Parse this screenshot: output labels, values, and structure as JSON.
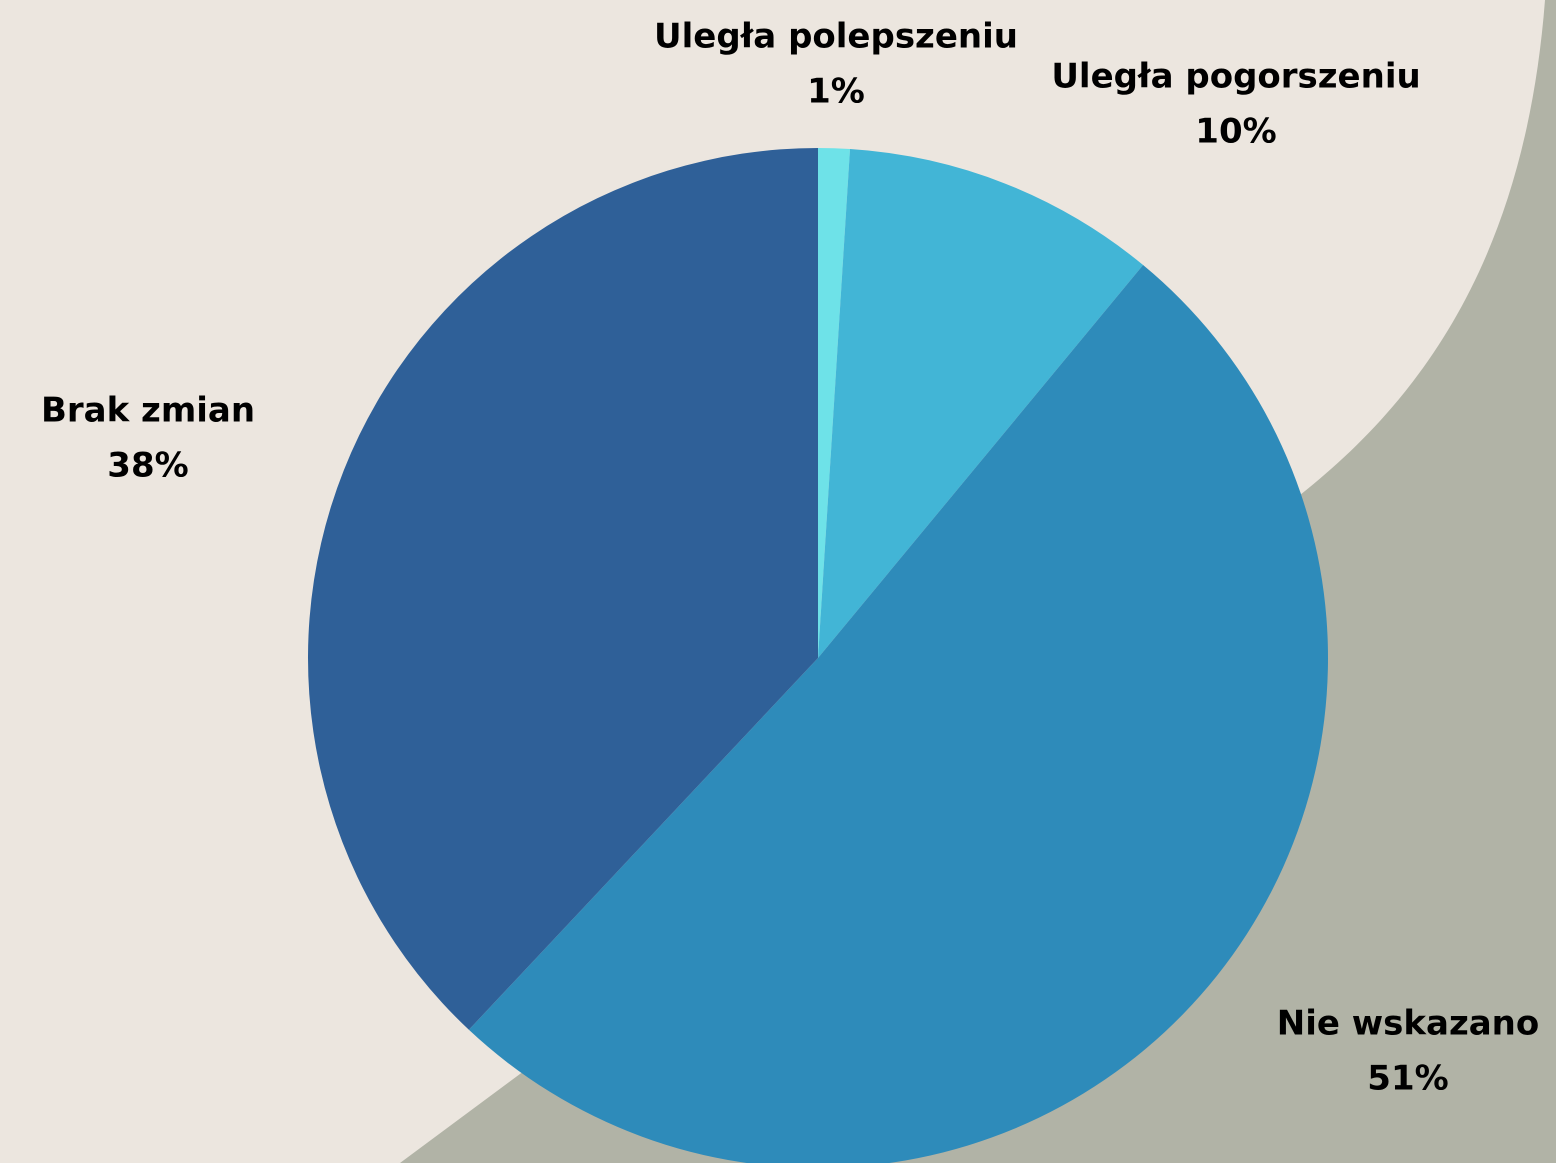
{
  "chart_data": {
    "type": "pie",
    "categories": [
      "Uległa polepszeniu",
      "Uległa pogorszeniu",
      "Nie wskazano",
      "Brak zmian"
    ],
    "values": [
      1,
      10,
      51,
      38
    ],
    "value_labels": [
      "1%",
      "10%",
      "51%",
      "38%"
    ],
    "colors": [
      "#6ee2e8",
      "#42b5d6",
      "#2e8bba",
      "#2f6098"
    ]
  }
}
